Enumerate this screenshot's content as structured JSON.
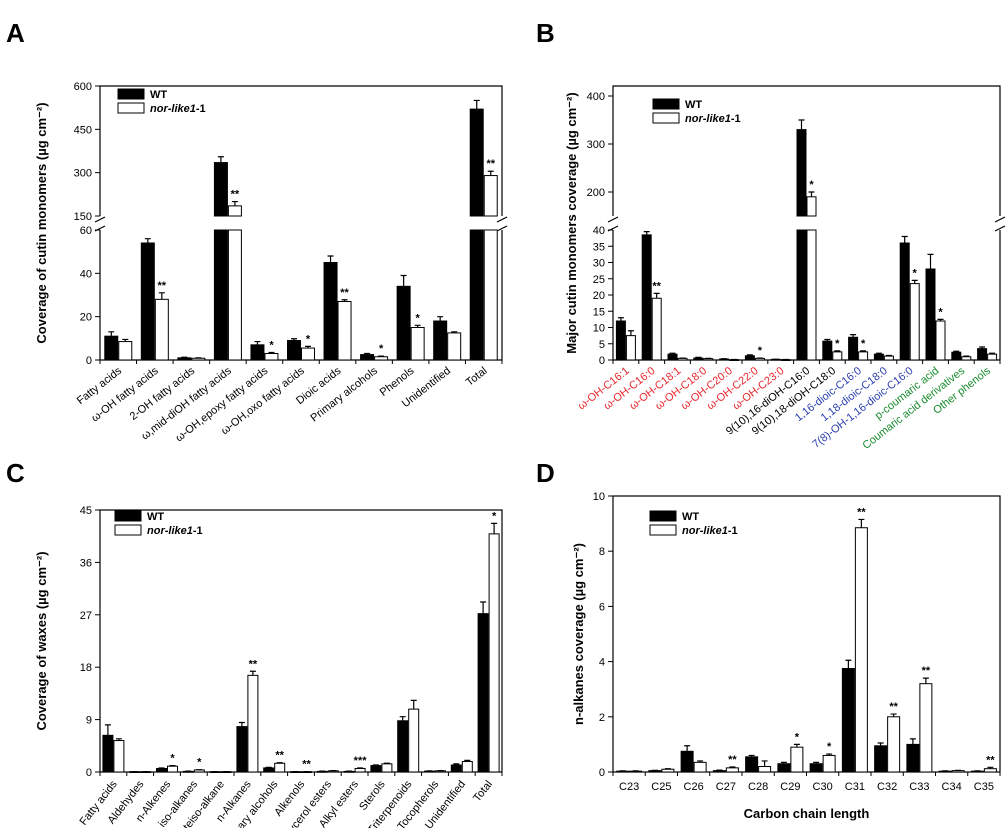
{
  "legend": {
    "wt": "WT",
    "mutant_italic": "nor-like1",
    "mutant_suffix": "-1"
  },
  "colors": {
    "wt": "#000000",
    "mutant": "#ffffff",
    "red": "#e8262c",
    "blue": "#2a3fae",
    "green": "#178a2c"
  },
  "chart_data": [
    {
      "panel": "A",
      "type": "bar",
      "ylabel": "Coverage of cutin monomers (µg cm⁻²)",
      "xlabel": "",
      "broken_axis": true,
      "lower_ylim": [
        0,
        60
      ],
      "lower_ticks": [
        "0",
        "20",
        "40",
        "60"
      ],
      "upper_ylim": [
        150,
        600
      ],
      "upper_ticks": [
        "150",
        "300",
        "450",
        "600"
      ],
      "categories": [
        "Fatty acids",
        "ω-OH fatty acids",
        "2-OH fatty acids",
        "ω,mid-diOH fatty acids",
        "ω-OH,epoxy fatty acids",
        "ω-OH,oxo fatty acids",
        "Dioic acids",
        "Primary alcohols",
        "Phenols",
        "Unidentified",
        "Total"
      ],
      "series": [
        {
          "name": "WT",
          "values": [
            11,
            54,
            1,
            335,
            7,
            9,
            45,
            2.5,
            34,
            18,
            520
          ],
          "errors": [
            2,
            2,
            0.3,
            20,
            1.5,
            0.8,
            3,
            0.5,
            5,
            2,
            30
          ]
        },
        {
          "name": "nor-like1-1",
          "values": [
            8.5,
            28,
            0.8,
            185,
            3,
            5.5,
            27,
            1.5,
            15,
            12.5,
            290
          ],
          "errors": [
            1,
            3,
            0.2,
            15,
            0.5,
            0.8,
            0.8,
            0.3,
            1,
            0.5,
            15
          ]
        }
      ],
      "significance": [
        "",
        "**",
        "",
        "**",
        "*",
        "*",
        "**",
        "*",
        "*",
        "",
        "**"
      ]
    },
    {
      "panel": "B",
      "type": "bar",
      "ylabel": "Major cutin monomers coverage (µg cm⁻²)",
      "xlabel": "",
      "broken_axis": true,
      "lower_ylim": [
        0,
        40
      ],
      "lower_ticks": [
        "0",
        "5",
        "10",
        "15",
        "20",
        "25",
        "30",
        "35",
        "40"
      ],
      "upper_ylim": [
        150,
        400
      ],
      "upper_ticks": [
        "200",
        "300",
        "400"
      ],
      "categories": [
        "ω-OH-C16:1",
        "ω-OH-C16:0",
        "ω-OH-C18:1",
        "ω-OH-C18:0",
        "ω-OH-C20:0",
        "ω-OH-C22:0",
        "ω-OH-C23:0",
        "9(10),16-diOH-C16:0",
        "9(10),18-diOH-C18:0",
        "1,16-dioic-C16:0",
        "1,18-dioic-C18:0",
        "7(8)-OH-1,16-dioic-C16:0",
        "p-coumaric acid",
        "Coumaric acid derivatives",
        "Other phenols"
      ],
      "category_colors": [
        "red",
        "red",
        "red",
        "red",
        "red",
        "red",
        "red",
        "black",
        "black",
        "blue",
        "blue",
        "blue",
        "green",
        "green",
        "green"
      ],
      "series": [
        {
          "name": "WT",
          "values": [
            12,
            38.5,
            1.8,
            0.6,
            0.3,
            1.3,
            0.2,
            330,
            5.8,
            7,
            1.8,
            36,
            28,
            2.4,
            3.5
          ],
          "errors": [
            1,
            1,
            0.3,
            0.2,
            0.1,
            0.3,
            0.05,
            20,
            0.5,
            0.8,
            0.3,
            2,
            4.5,
            0.3,
            0.5
          ]
        },
        {
          "name": "nor-like1-1",
          "values": [
            7.5,
            19,
            0.5,
            0.4,
            0.1,
            0.5,
            0.1,
            190,
            2.5,
            2.5,
            1.2,
            23.5,
            12,
            1,
            1.8
          ],
          "errors": [
            1.5,
            1.5,
            0.1,
            0.1,
            0.05,
            0.1,
            0.05,
            10,
            0.3,
            0.3,
            0.2,
            1,
            0.5,
            0.2,
            0.3
          ]
        }
      ],
      "significance": [
        "",
        "**",
        "",
        "",
        "",
        "*",
        "",
        "*",
        "*",
        "*",
        "",
        "*",
        "*",
        "",
        ""
      ]
    },
    {
      "panel": "C",
      "type": "bar",
      "ylabel": "Coverage of waxes (µg cm⁻²)",
      "xlabel": "",
      "ylim": [
        0,
        45
      ],
      "ticks": [
        "0",
        "9",
        "18",
        "27",
        "36",
        "45"
      ],
      "categories": [
        "Fatty acids",
        "Aldehydes",
        "n-Alkenes",
        "iso-alkanes",
        "anteiso-alkane",
        "n-Alkanes",
        "Primary alcohols",
        "Alkenols",
        "Glycerol esters",
        "Alkyl esters",
        "Sterols",
        "Triterpenoids",
        "Tocopherols",
        "Unidentified",
        "Total"
      ],
      "series": [
        {
          "name": "WT",
          "values": [
            6.3,
            0.05,
            0.6,
            0.1,
            0.05,
            7.8,
            0.7,
            0.05,
            0.1,
            0.1,
            1.1,
            8.8,
            0.15,
            1.2,
            27.2
          ],
          "errors": [
            1.8,
            0.02,
            0.1,
            0.05,
            0.02,
            0.7,
            0.1,
            0.02,
            0.05,
            0.05,
            0.1,
            0.7,
            0.05,
            0.2,
            2
          ]
        },
        {
          "name": "nor-like1-1",
          "values": [
            5.4,
            0.05,
            1.0,
            0.35,
            0.05,
            16.6,
            1.5,
            0.05,
            0.2,
            0.6,
            1.4,
            10.8,
            0.2,
            1.8,
            40.9
          ],
          "errors": [
            0.3,
            0.02,
            0.1,
            0.05,
            0.02,
            0.7,
            0.1,
            0.02,
            0.05,
            0.1,
            0.1,
            1.5,
            0.05,
            0.2,
            1.8
          ]
        }
      ],
      "significance": [
        "",
        "",
        "*",
        "*",
        "",
        "**",
        "**",
        "**",
        "",
        "***",
        "",
        "",
        "",
        "",
        "*"
      ]
    },
    {
      "panel": "D",
      "type": "bar",
      "ylabel": "n-alkanes coverage (µg cm⁻²)",
      "xlabel": "Carbon chain length",
      "ylim": [
        0,
        10
      ],
      "ticks": [
        "0",
        "2",
        "4",
        "6",
        "8",
        "10"
      ],
      "categories": [
        "C23",
        "C25",
        "C26",
        "C27",
        "C28",
        "C29",
        "C30",
        "C31",
        "C32",
        "C33",
        "C34",
        "C35"
      ],
      "series": [
        {
          "name": "WT",
          "values": [
            0.03,
            0.05,
            0.75,
            0.05,
            0.55,
            0.3,
            0.3,
            3.75,
            0.95,
            1.0,
            0.03,
            0.03
          ],
          "errors": [
            0.01,
            0.01,
            0.2,
            0.02,
            0.05,
            0.05,
            0.05,
            0.3,
            0.1,
            0.2,
            0.01,
            0.01
          ]
        },
        {
          "name": "nor-like1-1",
          "values": [
            0.03,
            0.1,
            0.35,
            0.15,
            0.2,
            0.9,
            0.6,
            8.85,
            2.0,
            3.2,
            0.05,
            0.12
          ],
          "errors": [
            0.01,
            0.02,
            0.05,
            0.03,
            0.2,
            0.1,
            0.05,
            0.3,
            0.1,
            0.2,
            0.01,
            0.05
          ]
        }
      ],
      "significance": [
        "",
        "",
        "",
        "**",
        "",
        "*",
        "*",
        "**",
        "**",
        "**",
        "",
        "**"
      ]
    }
  ]
}
